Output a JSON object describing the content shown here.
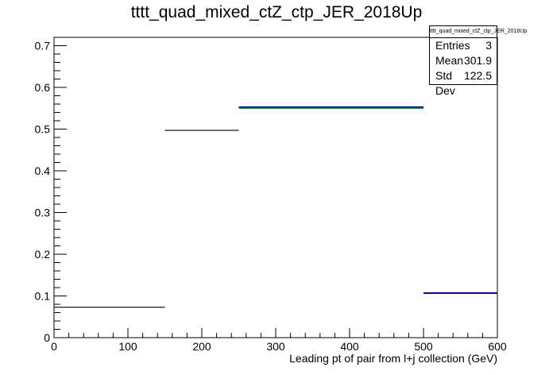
{
  "chart_data": {
    "type": "step",
    "title": "tttt_quad_mixed_ctZ_ctp_JER_2018Up",
    "xlabel": "Leading pt of pair from l+j collection (GeV)",
    "ylabel": "",
    "xlim": [
      0,
      600
    ],
    "ylim": [
      0,
      0.72
    ],
    "x_ticks": [
      "0",
      "100",
      "200",
      "300",
      "400",
      "500",
      "600"
    ],
    "y_ticks": [
      "0",
      "0.1",
      "0.2",
      "0.3",
      "0.4",
      "0.5",
      "0.6",
      "0.7"
    ],
    "bins": [
      {
        "x_low": 0,
        "x_high": 150,
        "value": 0.073,
        "color": "#000000"
      },
      {
        "x_low": 150,
        "x_high": 250,
        "value": 0.497,
        "color": "#000000"
      },
      {
        "x_low": 250,
        "x_high": 500,
        "value": 0.552,
        "color": "#000000"
      },
      {
        "x_low": 500,
        "x_high": 600,
        "value": 0.107,
        "color": "#000080"
      }
    ],
    "overlay_segments": [
      {
        "x_low": 250,
        "x_high": 500,
        "value": 0.55,
        "color": "#00a050"
      },
      {
        "x_low": 250,
        "x_high": 500,
        "value": 0.553,
        "color": "#000080"
      }
    ],
    "stats": {
      "title": "tttt_quad_mixed_ctZ_ctp_JER_2018Up",
      "rows": [
        {
          "label": "Entries",
          "value": "3"
        },
        {
          "label": "Mean",
          "value": "301.9"
        },
        {
          "label": "Std Dev",
          "value": "122.5"
        }
      ]
    }
  }
}
